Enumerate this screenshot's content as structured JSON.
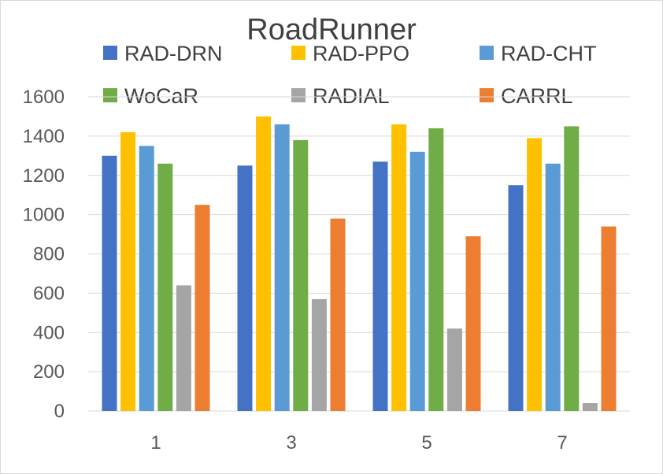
{
  "chart_data": {
    "type": "bar",
    "title": "RoadRunner",
    "xlabel": "",
    "ylabel": "",
    "categories": [
      "1",
      "3",
      "5",
      "7"
    ],
    "ylim": [
      0,
      1600
    ],
    "yticks": [
      0,
      200,
      400,
      600,
      800,
      1000,
      1200,
      1400,
      1600
    ],
    "grid": true,
    "legend_position": "top",
    "series": [
      {
        "name": "RAD-DRN",
        "color": "#4472C4",
        "values": [
          1300,
          1250,
          1270,
          1150
        ]
      },
      {
        "name": "RAD-PPO",
        "color": "#FFC000",
        "values": [
          1420,
          1500,
          1460,
          1390
        ]
      },
      {
        "name": "RAD-CHT",
        "color": "#5B9BD5",
        "values": [
          1350,
          1460,
          1320,
          1260
        ]
      },
      {
        "name": "WoCaR",
        "color": "#70AD47",
        "values": [
          1260,
          1380,
          1440,
          1450
        ]
      },
      {
        "name": "RADIAL",
        "color": "#A5A5A5",
        "values": [
          640,
          570,
          420,
          40
        ]
      },
      {
        "name": "CARRL",
        "color": "#ED7D31",
        "values": [
          1050,
          980,
          890,
          940
        ]
      }
    ]
  }
}
